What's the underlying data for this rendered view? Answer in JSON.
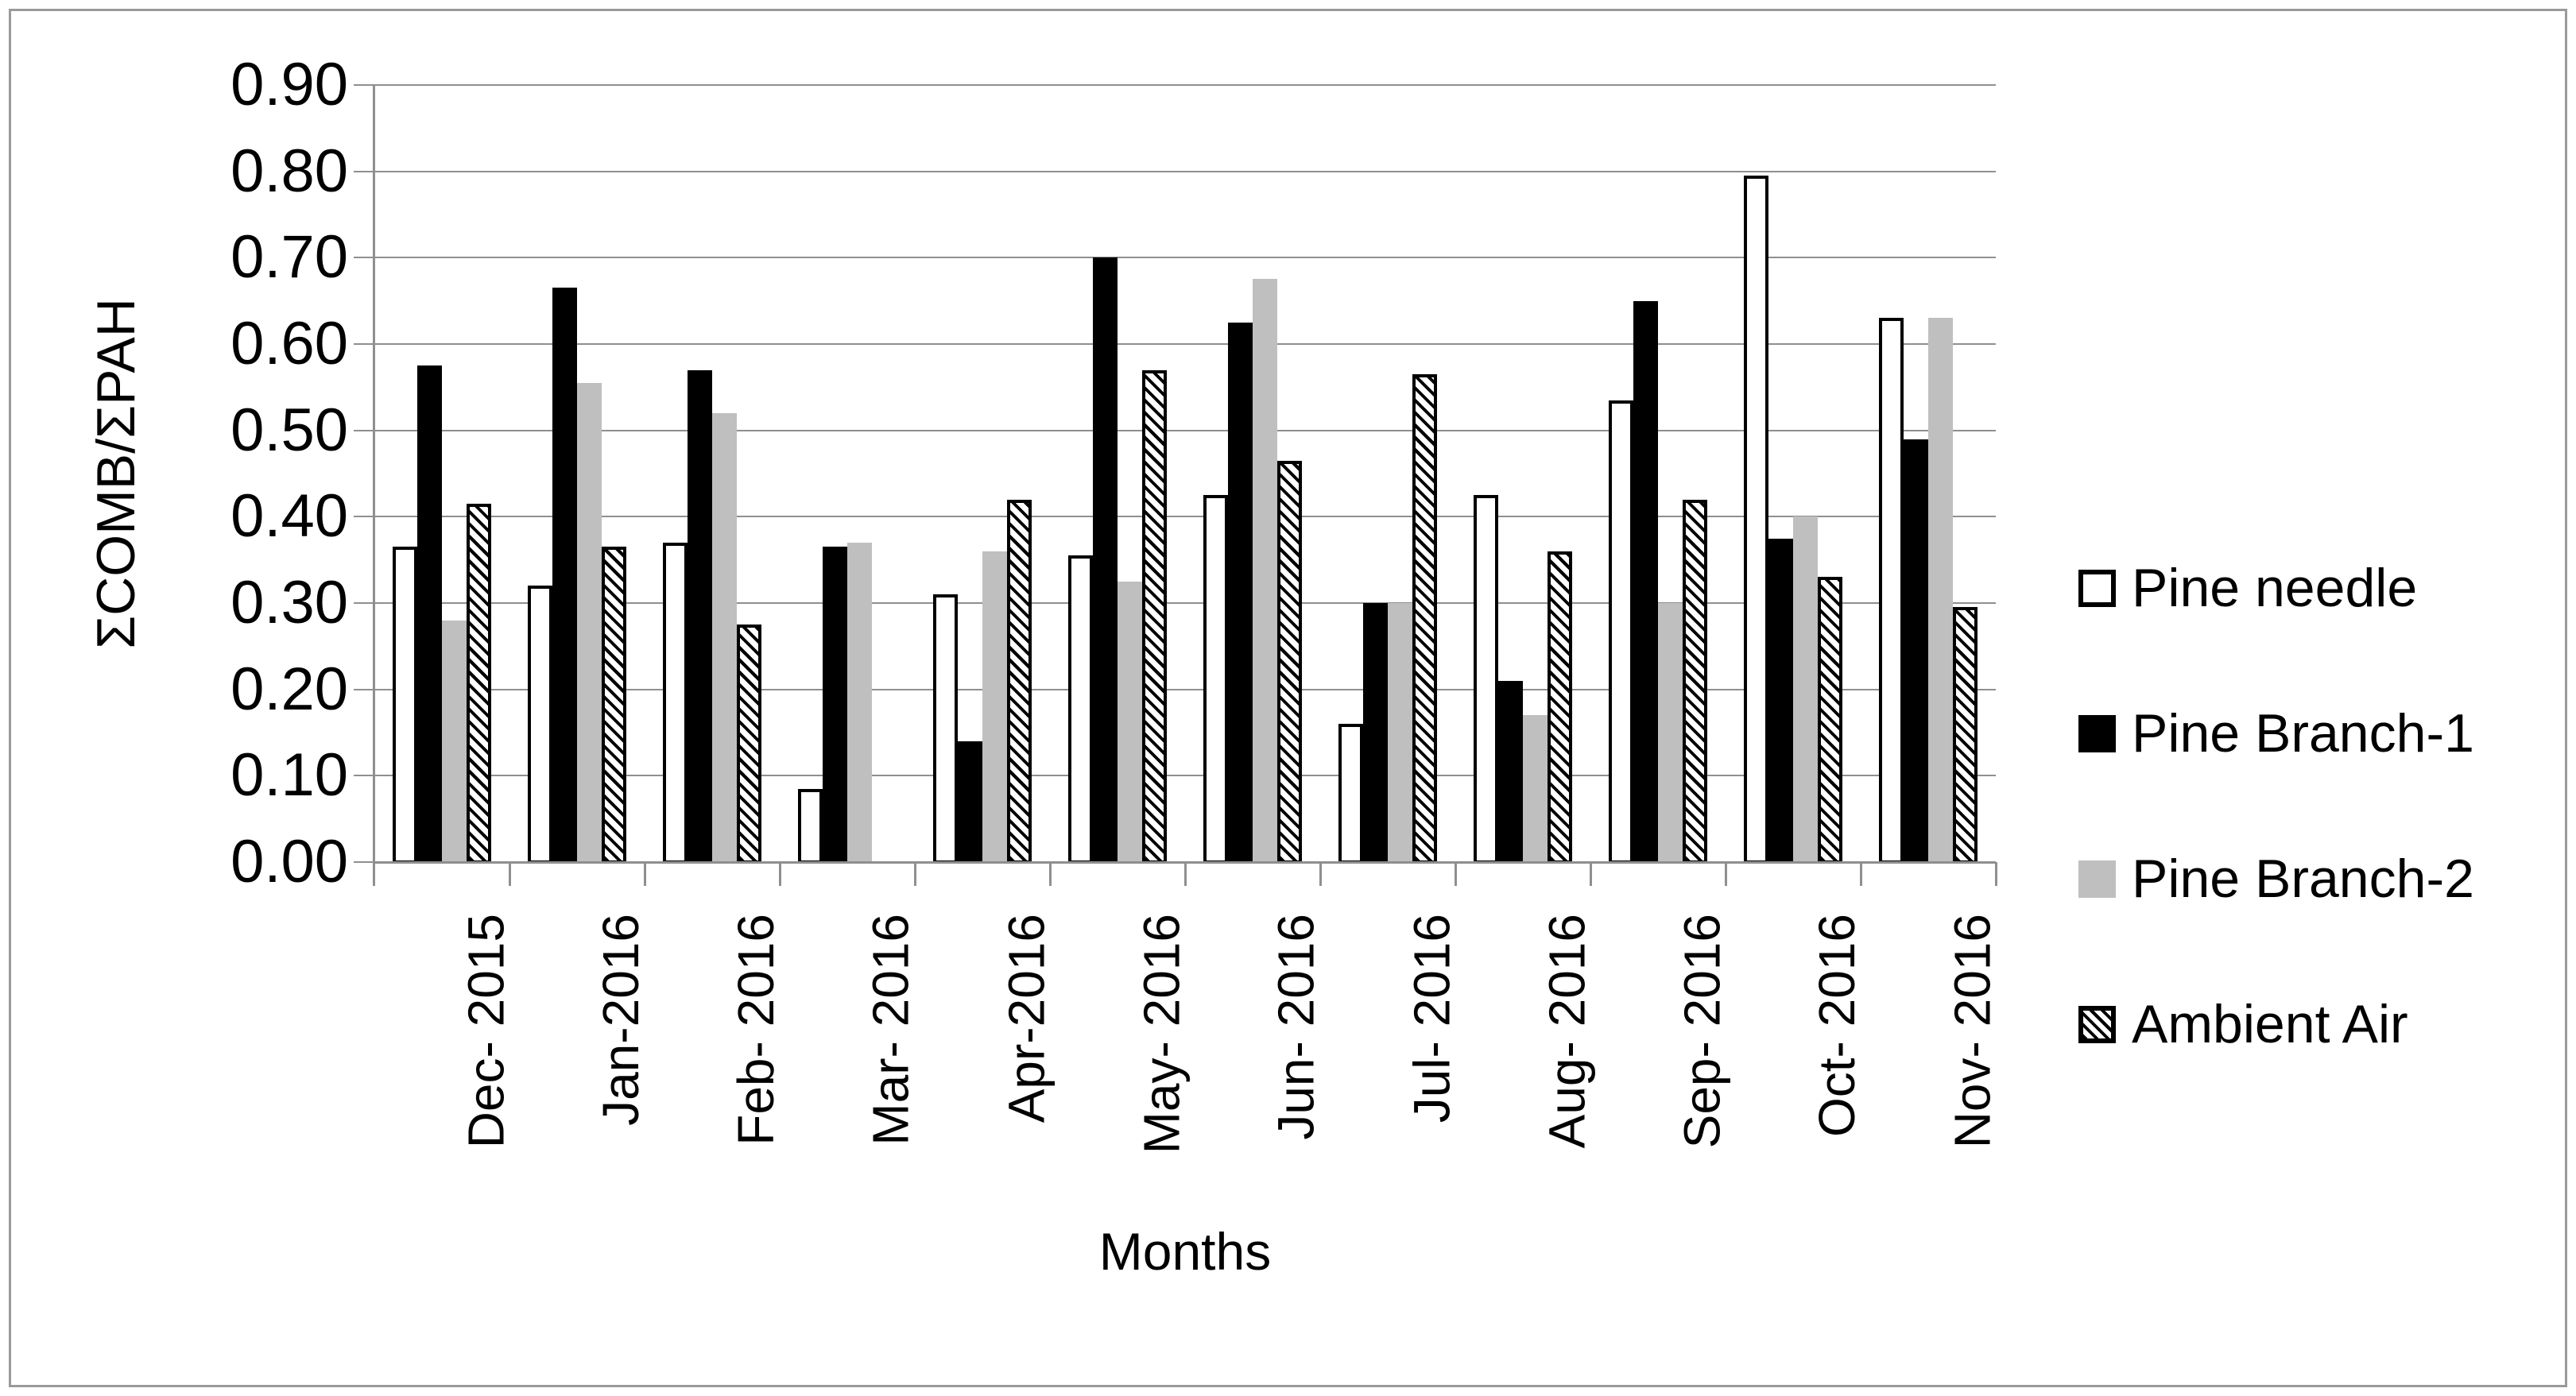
{
  "chart_data": {
    "type": "bar",
    "title": "",
    "xlabel": "Months",
    "ylabel": "ΣCOMB/ΣPAH",
    "ylim": [
      0.0,
      0.9
    ],
    "ytick_step": 0.1,
    "yticks": [
      "0.90",
      "0.80",
      "0.70",
      "0.60",
      "0.50",
      "0.40",
      "0.30",
      "0.20",
      "0.10",
      "0.00"
    ],
    "grid": true,
    "legend_position": "right",
    "categories": [
      "Dec- 2015",
      "Jan-2016",
      "Feb- 2016",
      "Mar- 2016",
      "Apr-2016",
      "May- 2016",
      "Jun- 2016",
      "Jul- 2016",
      "Aug- 2016",
      "Sep- 2016",
      "Oct- 2016",
      "Nov- 2016"
    ],
    "series": [
      {
        "name": "Pine needle",
        "style": "outline",
        "fill": "#ffffff",
        "border": "#000000",
        "pattern": "none",
        "values": [
          0.365,
          0.32,
          0.37,
          0.085,
          0.31,
          0.355,
          0.425,
          0.16,
          0.425,
          0.535,
          0.795,
          0.63
        ]
      },
      {
        "name": "Pine Branch-1",
        "style": "solid",
        "fill": "#000000",
        "border": "#000000",
        "pattern": "none",
        "values": [
          0.575,
          0.665,
          0.57,
          0.365,
          0.14,
          0.7,
          0.625,
          0.3,
          0.21,
          0.65,
          0.375,
          0.49
        ]
      },
      {
        "name": "Pine Branch-2",
        "style": "gray",
        "fill": "#bfbfbf",
        "border": "#bfbfbf",
        "pattern": "none",
        "values": [
          0.28,
          0.555,
          0.52,
          0.37,
          0.36,
          0.325,
          0.675,
          0.3,
          0.17,
          0.3,
          0.4,
          0.63
        ]
      },
      {
        "name": "Ambient Air",
        "style": "hatch",
        "fill": "#ffffff",
        "border": "#000000",
        "pattern": "diagonal-hatch",
        "values": [
          0.415,
          0.365,
          0.275,
          0,
          0.42,
          0.57,
          0.465,
          0.565,
          0.36,
          0.42,
          0.33,
          0.295
        ]
      }
    ]
  },
  "colors": {
    "grid": "#8f8f8f",
    "axis": "#8f8f8f",
    "frame": "#9a9a9a",
    "text": "#000000",
    "gray_series": "#bfbfbf"
  }
}
